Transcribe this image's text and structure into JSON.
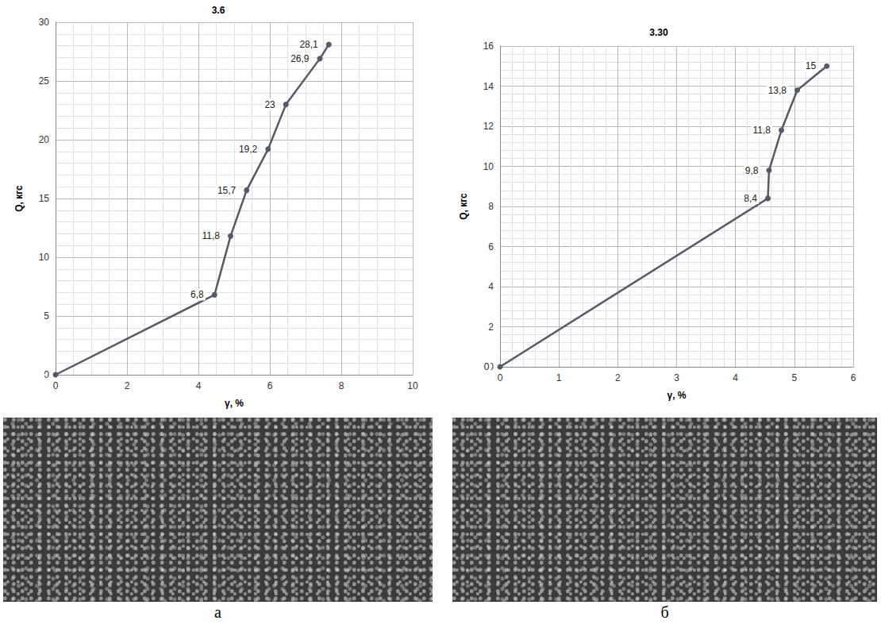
{
  "chart_data": [
    {
      "type": "line",
      "title": "3.6",
      "x_label": "γ, %",
      "y_label": "Q, кгс",
      "caption": "а",
      "x": [
        0,
        4.45,
        4.9,
        5.35,
        5.95,
        6.45,
        7.4,
        7.65
      ],
      "values": [
        0,
        6.8,
        11.8,
        15.7,
        19.2,
        23,
        26.9,
        28.1
      ],
      "value_labels": [
        null,
        "6,8",
        "11,8",
        "15,7",
        "19,2",
        "23",
        "26,9",
        "28,1"
      ],
      "xlim": [
        0,
        10
      ],
      "xticks": [
        0,
        2,
        4,
        6,
        8,
        10
      ],
      "ylim": [
        0,
        30
      ],
      "yticks": [
        0,
        5,
        10,
        15,
        20,
        25,
        30
      ],
      "grid": true,
      "data_labels": true,
      "color": "#555a66",
      "marker": "circle"
    },
    {
      "type": "line",
      "title": "3.30",
      "x_label": "γ, %",
      "y_label": "Q, кгс",
      "caption": "б",
      "x": [
        0,
        4.55,
        4.57,
        4.78,
        5.05,
        5.55
      ],
      "values": [
        0,
        8.4,
        9.8,
        11.8,
        13.8,
        15
      ],
      "value_labels": [
        "0",
        "8,4",
        "9,8",
        "11,8",
        "13,8",
        "15"
      ],
      "xlim": [
        0,
        6
      ],
      "xticks": [
        0,
        1,
        2,
        3,
        4,
        5,
        6
      ],
      "ylim": [
        0,
        16
      ],
      "yticks": [
        0,
        2,
        4,
        6,
        8,
        10,
        12,
        14,
        16
      ],
      "grid": true,
      "data_labels": true,
      "color": "#555a66",
      "marker": "circle"
    }
  ]
}
